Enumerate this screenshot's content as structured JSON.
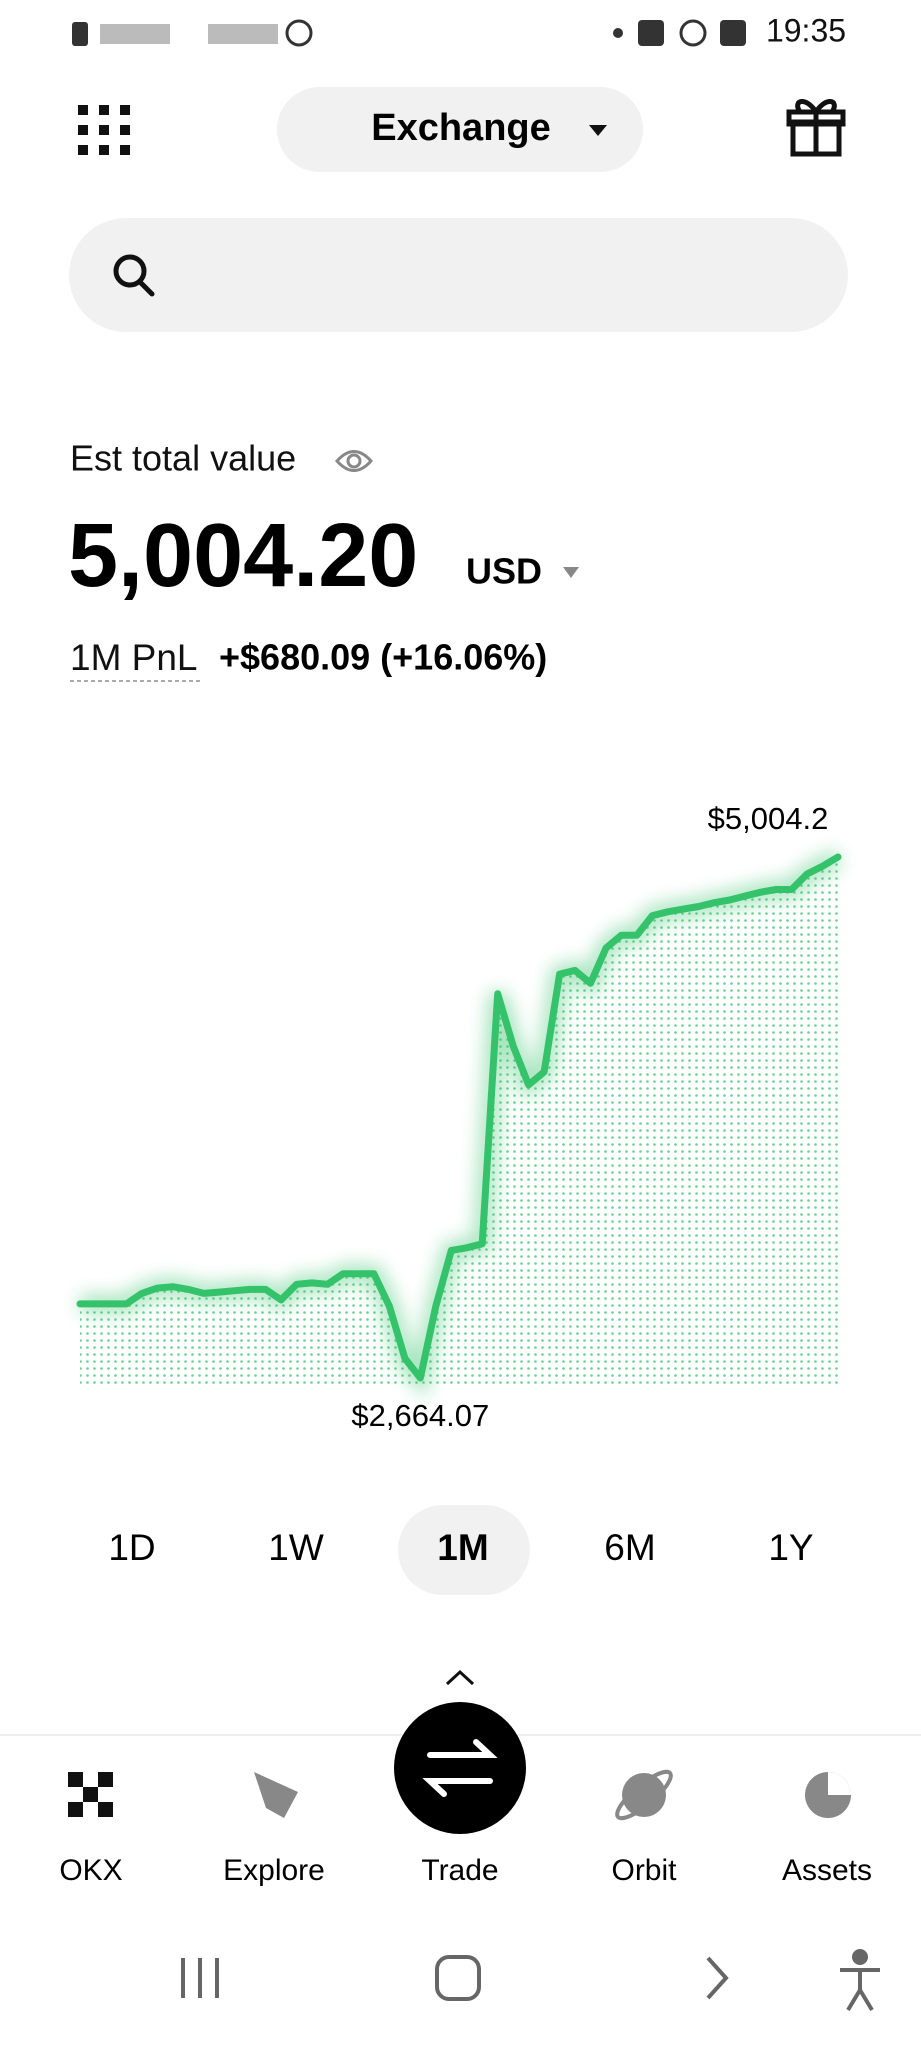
{
  "status_bar": {
    "time": "19:35"
  },
  "header": {
    "title": "Exchange"
  },
  "balance": {
    "label": "Est total value",
    "amount": "5,004.20",
    "currency": "USD",
    "pnl_label": "1M PnL",
    "pnl_value": "+$680.09 (+16.06%)"
  },
  "chart_data": {
    "type": "line",
    "color": "#34c26a",
    "values": [
      2997,
      2997,
      2997,
      2997,
      3044,
      3068,
      3074,
      3062,
      3044,
      3050,
      3056,
      3062,
      3062,
      3015,
      3085,
      3091,
      3085,
      3132,
      3132,
      3132,
      2986,
      2752,
      2664.07,
      2986,
      3237,
      3249,
      3267,
      4390,
      4156,
      3981,
      4039,
      4478,
      4495,
      4437,
      4595,
      4653,
      4653,
      4741,
      4758,
      4770,
      4782,
      4799,
      4811,
      4829,
      4846,
      4858,
      4858,
      4928,
      4963,
      5004.2
    ],
    "annotations": [
      "$5,004.2",
      "$2,664.07"
    ]
  },
  "ranges": [
    "1D",
    "1W",
    "1M",
    "6M",
    "1Y"
  ],
  "nav": [
    "OKX",
    "Explore",
    "Trade",
    "Orbit",
    "Assets"
  ]
}
